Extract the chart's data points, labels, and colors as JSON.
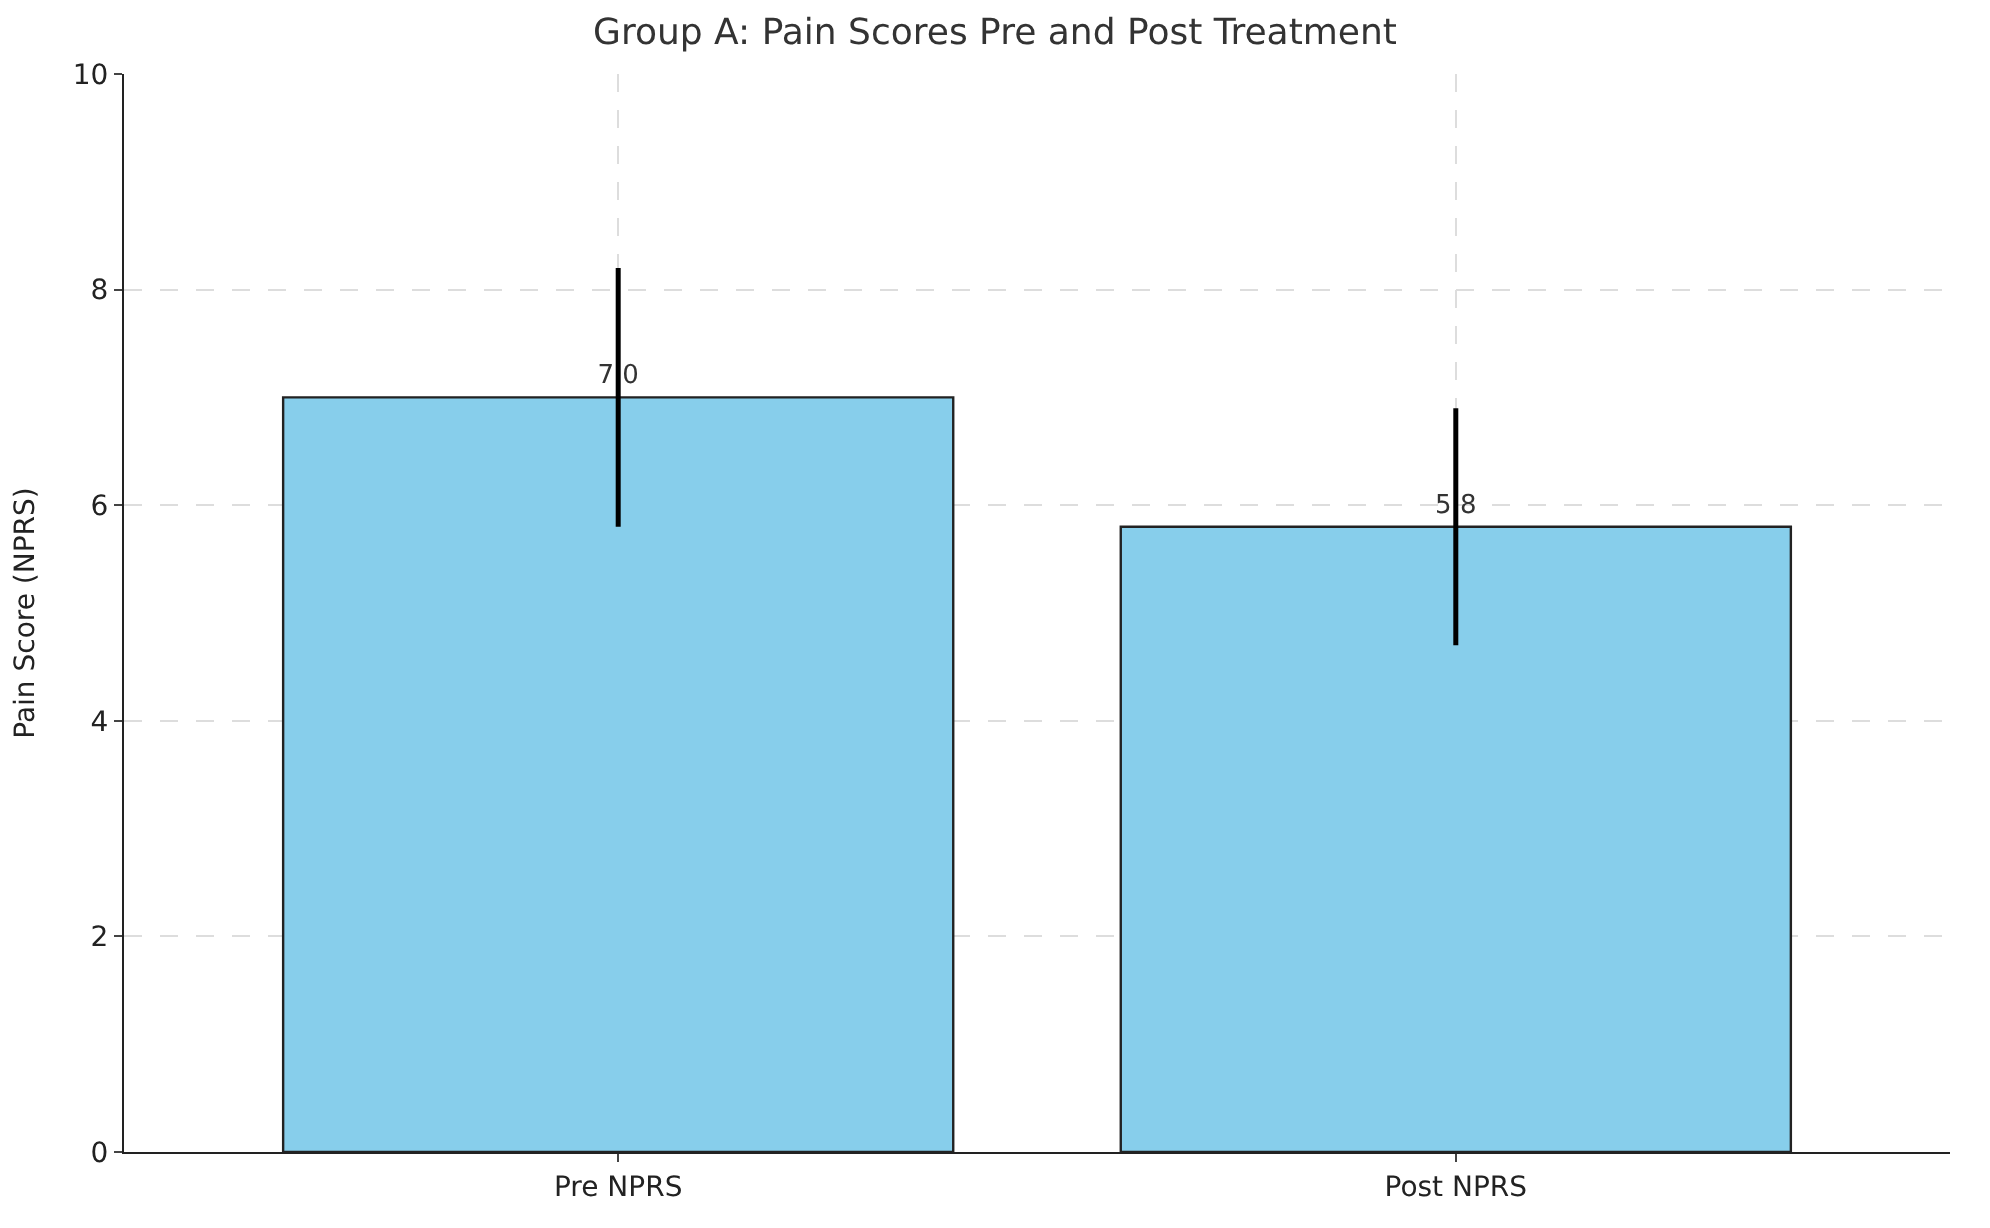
{
  "chart_data": {
    "type": "bar",
    "title": "Group A: Pain Scores Pre and Post Treatment",
    "ylabel": "Pain Score (NPRS)",
    "categories": [
      "Pre NPRS",
      "Post NPRS"
    ],
    "values": [
      7.0,
      5.8
    ],
    "errors": [
      1.2,
      1.1
    ],
    "value_labels": [
      "7.0",
      "5.8"
    ],
    "color": "#87ceeb",
    "ylim": [
      0,
      10
    ],
    "yticks": [
      0,
      2,
      4,
      6,
      8,
      10
    ],
    "grid": true
  }
}
